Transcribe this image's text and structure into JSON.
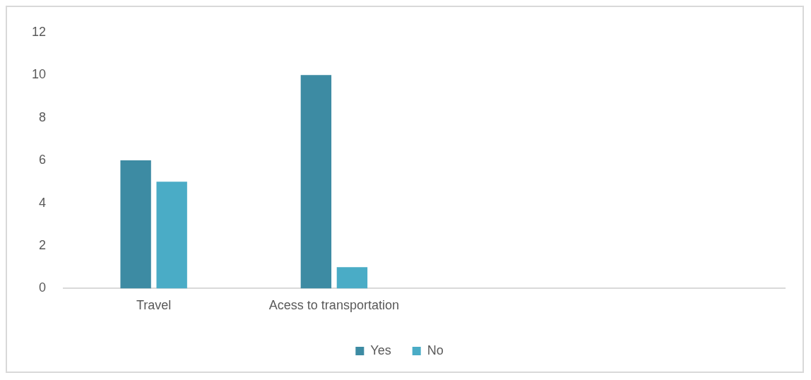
{
  "chart_data": {
    "type": "bar",
    "categories": [
      "Travel",
      "Acess to transportation",
      null,
      null
    ],
    "series": [
      {
        "name": "Yes",
        "color": "#3d8ba3",
        "values": [
          6,
          10,
          null,
          null
        ]
      },
      {
        "name": "No",
        "color": "#4aacc6",
        "values": [
          5,
          1,
          null,
          null
        ]
      }
    ],
    "ylim": [
      0,
      12
    ],
    "yticks": [
      0,
      2,
      4,
      6,
      8,
      10,
      12
    ],
    "grid": false,
    "legend": "bottom"
  }
}
